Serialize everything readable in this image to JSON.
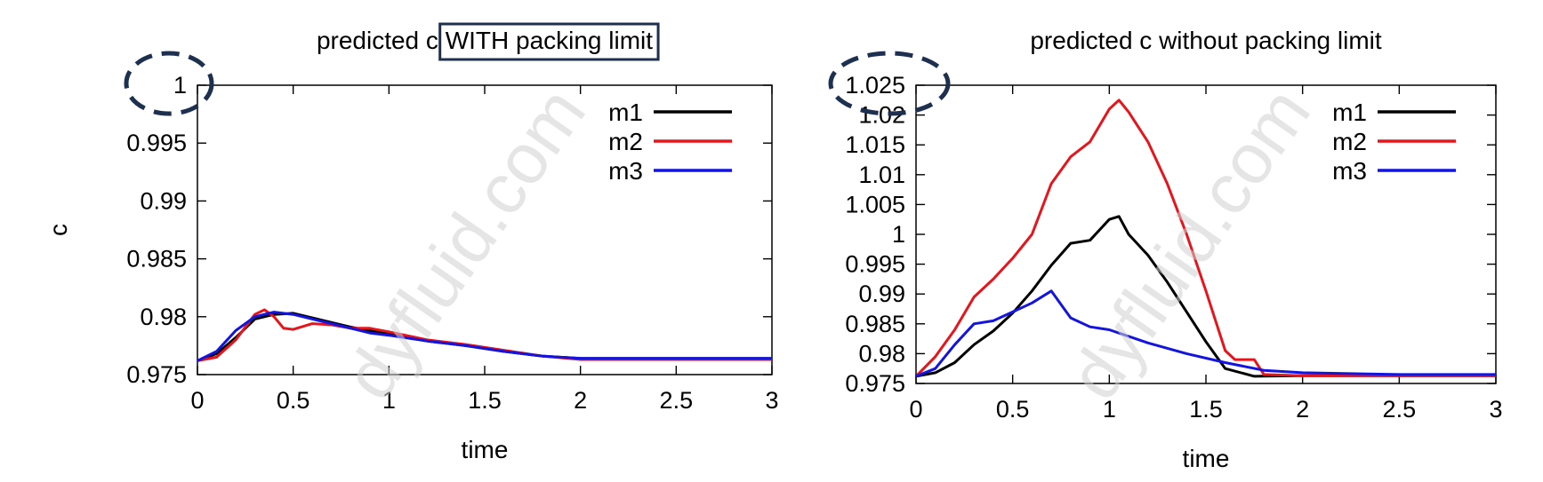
{
  "watermark": "dyfluid.com",
  "colors": {
    "m1": "#000000",
    "m2": "#e8141b",
    "m3": "#1414e0",
    "annotation": "#1e3050"
  },
  "chart_data": [
    {
      "type": "line",
      "title_prefix": "predicted c ",
      "title_highlight": "WITH packing limit",
      "xlabel": "time",
      "ylabel": "c",
      "xlim": [
        0,
        3
      ],
      "ylim": [
        0.975,
        1.0
      ],
      "xticks": [
        "0",
        "0.5",
        "1",
        "1.5",
        "2",
        "2.5",
        "3"
      ],
      "xtick_values": [
        0,
        0.5,
        1,
        1.5,
        2,
        2.5,
        3
      ],
      "yticks": [
        "0.975",
        "0.98",
        "0.985",
        "0.99",
        "0.995",
        "1"
      ],
      "ytick_values": [
        0.975,
        0.98,
        0.985,
        0.99,
        0.995,
        1.0
      ],
      "legend_position": "top-right",
      "annotated_tick": "1",
      "series": [
        {
          "name": "m1",
          "x": [
            0,
            0.1,
            0.2,
            0.3,
            0.4,
            0.5,
            0.6,
            0.8,
            1.0,
            1.2,
            1.4,
            1.6,
            1.8,
            2.0,
            2.5,
            3.0
          ],
          "y": [
            0.9762,
            0.9768,
            0.9782,
            0.9798,
            0.9802,
            0.9803,
            0.9799,
            0.9791,
            0.9785,
            0.9779,
            0.9775,
            0.977,
            0.9766,
            0.9764,
            0.9764,
            0.9764
          ]
        },
        {
          "name": "m2",
          "x": [
            0,
            0.1,
            0.2,
            0.3,
            0.35,
            0.4,
            0.45,
            0.5,
            0.6,
            0.7,
            0.8,
            0.9,
            1.0,
            1.2,
            1.4,
            1.6,
            1.8,
            2.0,
            2.5,
            3.0
          ],
          "y": [
            0.9762,
            0.9765,
            0.978,
            0.9802,
            0.9806,
            0.98,
            0.979,
            0.9789,
            0.9794,
            0.9793,
            0.979,
            0.979,
            0.9787,
            0.978,
            0.9776,
            0.9771,
            0.9766,
            0.9763,
            0.9763,
            0.9763
          ]
        },
        {
          "name": "m3",
          "x": [
            0,
            0.1,
            0.2,
            0.3,
            0.4,
            0.5,
            0.6,
            0.7,
            0.8,
            0.9,
            1.0,
            1.2,
            1.4,
            1.6,
            1.8,
            2.0,
            2.5,
            3.0
          ],
          "y": [
            0.9762,
            0.977,
            0.9788,
            0.98,
            0.9804,
            0.9802,
            0.9798,
            0.9794,
            0.979,
            0.9786,
            0.9784,
            0.9779,
            0.9775,
            0.977,
            0.9766,
            0.9764,
            0.9764,
            0.9764
          ]
        }
      ]
    },
    {
      "type": "line",
      "title_prefix": "predicted c without packing limit",
      "title_highlight": "",
      "xlabel": "time",
      "ylabel": "",
      "xlim": [
        0,
        3
      ],
      "ylim": [
        0.975,
        1.025
      ],
      "xticks": [
        "0",
        "0.5",
        "1",
        "1.5",
        "2",
        "2.5",
        "3"
      ],
      "xtick_values": [
        0,
        0.5,
        1,
        1.5,
        2,
        2.5,
        3
      ],
      "yticks": [
        "0.975",
        "0.98",
        "0.985",
        "0.99",
        "0.995",
        "1",
        "1.005",
        "1.01",
        "1.015",
        "1.02",
        "1.025"
      ],
      "ytick_values": [
        0.975,
        0.98,
        0.985,
        0.99,
        0.995,
        1.0,
        1.005,
        1.01,
        1.015,
        1.02,
        1.025
      ],
      "legend_position": "top-right",
      "annotated_tick": "1.025",
      "series": [
        {
          "name": "m1",
          "x": [
            0,
            0.1,
            0.2,
            0.3,
            0.4,
            0.5,
            0.6,
            0.7,
            0.8,
            0.9,
            1.0,
            1.05,
            1.1,
            1.2,
            1.3,
            1.4,
            1.5,
            1.6,
            1.75,
            2.0,
            2.5,
            3.0
          ],
          "y": [
            0.9762,
            0.9768,
            0.9785,
            0.9815,
            0.9838,
            0.9868,
            0.9905,
            0.9948,
            0.9985,
            0.999,
            1.0025,
            1.003,
            1.0,
            0.9965,
            0.992,
            0.987,
            0.982,
            0.9775,
            0.9762,
            0.9763,
            0.9763,
            0.9763
          ]
        },
        {
          "name": "m2",
          "x": [
            0,
            0.1,
            0.2,
            0.3,
            0.4,
            0.5,
            0.6,
            0.7,
            0.8,
            0.9,
            1.0,
            1.05,
            1.1,
            1.2,
            1.3,
            1.4,
            1.5,
            1.6,
            1.65,
            1.75,
            1.8,
            2.0,
            2.5,
            3.0
          ],
          "y": [
            0.9762,
            0.9795,
            0.984,
            0.9895,
            0.9925,
            0.996,
            1.0,
            1.0085,
            1.013,
            1.0155,
            1.021,
            1.0225,
            1.0205,
            1.0155,
            1.0085,
            1.0,
            0.9905,
            0.9805,
            0.979,
            0.979,
            0.9765,
            0.9763,
            0.9763,
            0.9763
          ]
        },
        {
          "name": "m3",
          "x": [
            0,
            0.1,
            0.2,
            0.3,
            0.4,
            0.5,
            0.6,
            0.7,
            0.8,
            0.9,
            1.0,
            1.2,
            1.4,
            1.6,
            1.8,
            2.0,
            2.5,
            3.0
          ],
          "y": [
            0.9762,
            0.9775,
            0.9815,
            0.985,
            0.9855,
            0.987,
            0.9885,
            0.9905,
            0.986,
            0.9845,
            0.984,
            0.9818,
            0.98,
            0.9785,
            0.9772,
            0.9768,
            0.9765,
            0.9765
          ]
        }
      ]
    }
  ]
}
